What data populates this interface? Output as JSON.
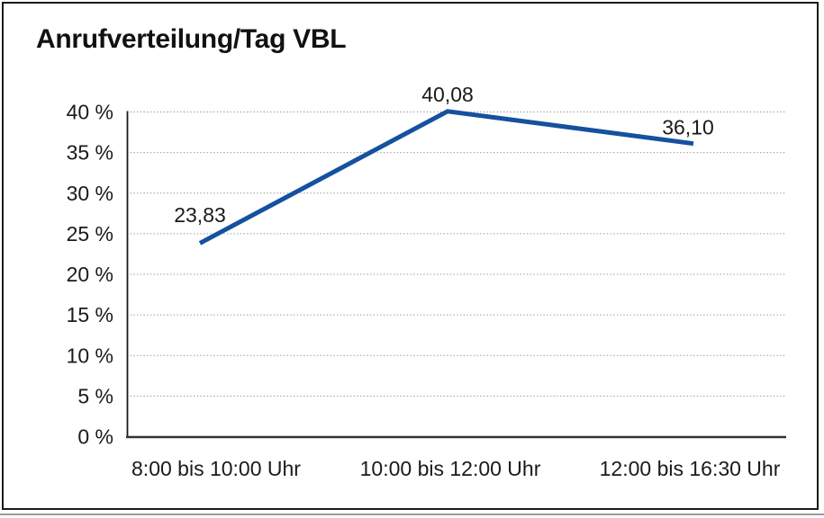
{
  "chart_data": {
    "type": "line",
    "title": "Anrufverteilung/Tag VBL",
    "categories": [
      "8:00 bis 10:00 Uhr",
      "10:00 bis 12:00 Uhr",
      "12:00 bis 16:30 Uhr"
    ],
    "values": [
      23.83,
      40.08,
      36.1
    ],
    "value_labels": [
      "23,83",
      "40,08",
      "36,10"
    ],
    "y_tick_labels": [
      "0 %",
      "5 %",
      "10 %",
      "15 %",
      "20 %",
      "25 %",
      "30 %",
      "35 %",
      "40 %"
    ],
    "ylim": [
      0,
      40
    ],
    "y_tick_step": 5,
    "xlabel": "",
    "ylabel": "",
    "grid": "horizontal-dotted",
    "legend_position": "none",
    "colors": {
      "line": "#15519e",
      "grid": "#8f8f8f",
      "axis": "#333333",
      "text": "#1a1a1a",
      "frame": "#1a1a1a"
    }
  }
}
